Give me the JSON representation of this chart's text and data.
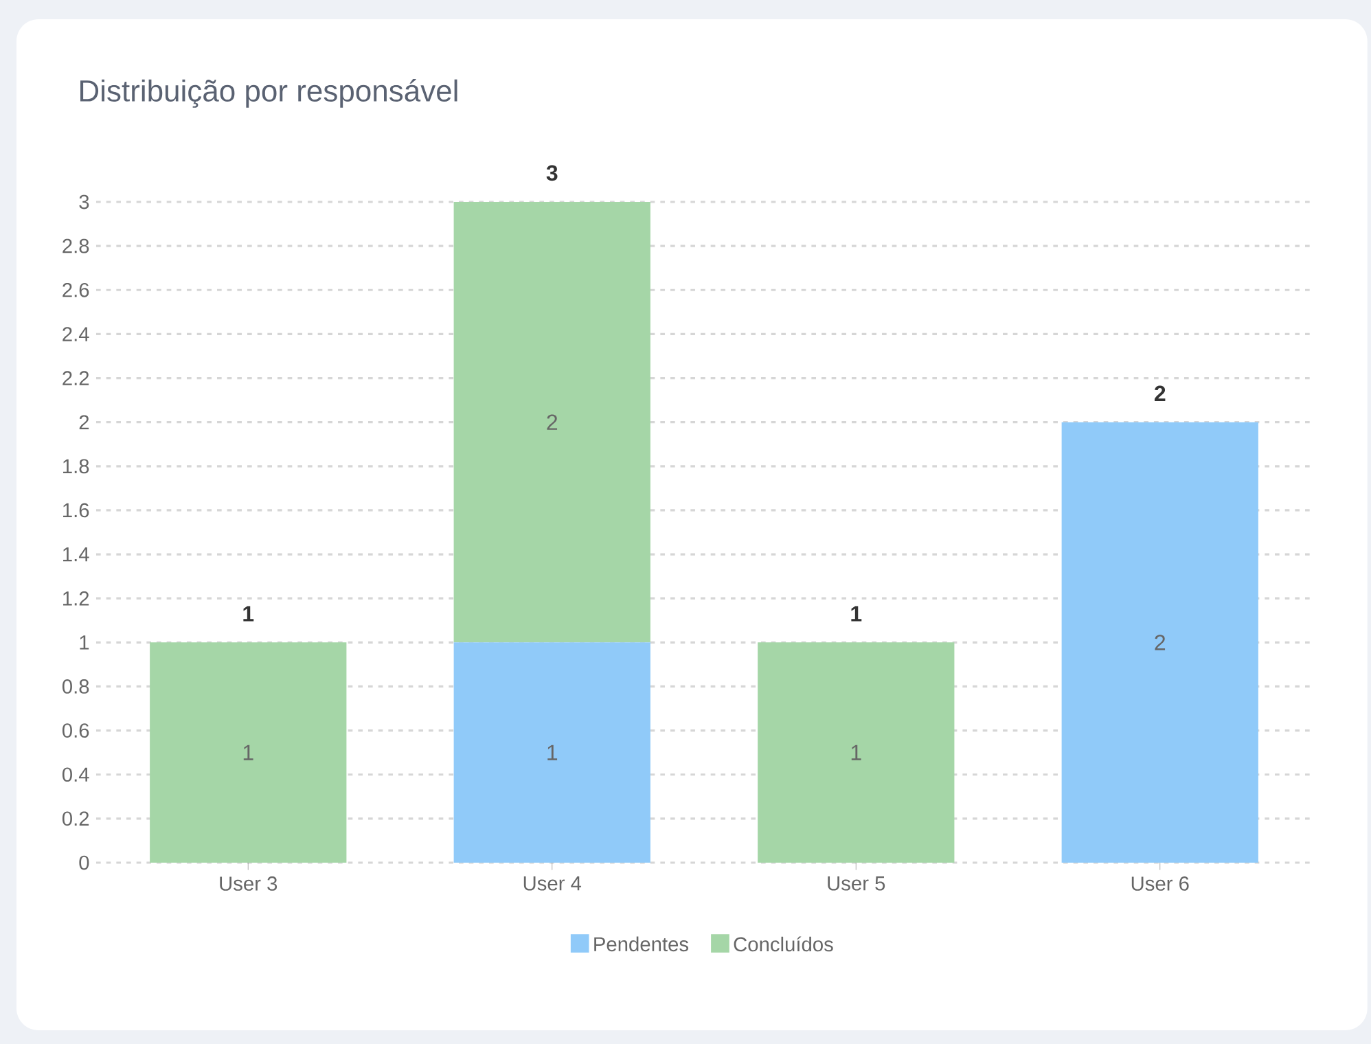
{
  "chart_data": {
    "type": "bar",
    "title": "Distribuição por responsável",
    "categories": [
      "User 3",
      "User 4",
      "User 5",
      "User 6"
    ],
    "stacked": true,
    "series": [
      {
        "name": "Pendentes",
        "color": "#90caf9",
        "values": [
          0,
          1,
          0,
          2
        ],
        "value_labels": [
          null,
          "1",
          null,
          "2"
        ]
      },
      {
        "name": "Concluídos",
        "color": "#a5d6a7",
        "values": [
          1,
          2,
          1,
          0
        ],
        "value_labels": [
          "1",
          "2",
          "1",
          null
        ]
      }
    ],
    "ylim": [
      0,
      3
    ],
    "yticks": [
      0,
      0.2,
      0.4,
      0.6,
      0.8,
      1,
      1.2,
      1.4,
      1.6,
      1.8,
      2,
      2.2,
      2.4,
      2.6,
      2.8,
      3
    ],
    "grid": "y",
    "legend": "bottom",
    "totals": [
      "1",
      "3",
      "1",
      "2"
    ]
  }
}
